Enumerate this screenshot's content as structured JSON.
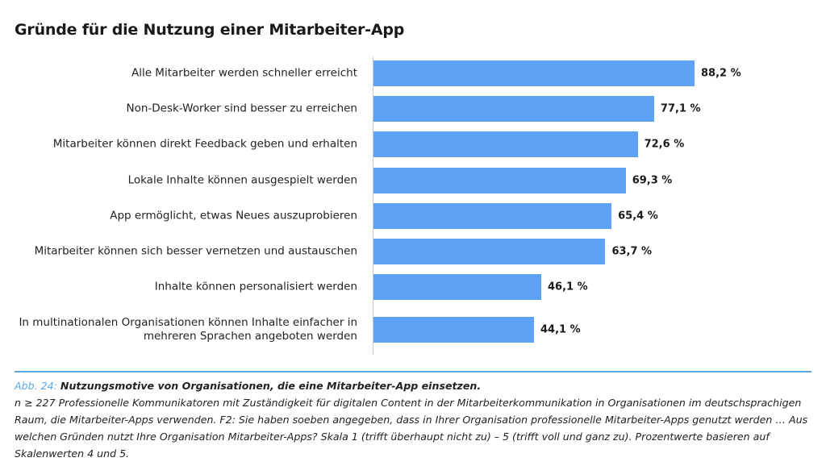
{
  "chart_data": {
    "type": "bar",
    "orientation": "horizontal",
    "title": "Gründe für die Nutzung einer Mitarbeiter-App",
    "categories": [
      "Alle Mitarbeiter werden schneller erreicht",
      "Non-Desk-Worker sind besser zu erreichen",
      "Mitarbeiter können direkt Feedback geben und erhalten",
      "Lokale Inhalte können ausgespielt werden",
      "App ermöglicht, etwas Neues auszuprobieren",
      "Mitarbeiter können sich besser vernetzen und austauschen",
      "Inhalte können personalisiert werden",
      "In multinationalen Organisationen können Inhalte einfacher in mehreren Sprachen angeboten werden"
    ],
    "values": [
      88.2,
      77.1,
      72.6,
      69.3,
      65.4,
      63.7,
      46.1,
      44.1
    ],
    "value_labels": [
      "88,2 %",
      "77,1 %",
      "72,6 %",
      "69,3 %",
      "65,4 %",
      "63,7 %",
      "46,1 %",
      "44,1 %"
    ],
    "color": "#5ea2f6"
  },
  "caption": {
    "label": "Abb. 24:",
    "title": "Nutzungsmotive von Organisationen, die eine Mitarbeiter-App einsetzen.",
    "note": "n ≥ 227 Professionelle Kommunikatoren mit Zuständigkeit für digitalen Content in der Mitarbeiterkommunikation in Organisationen im deutschsprachigen Raum, die Mitarbeiter-Apps verwenden. F2: Sie haben soeben angegeben, dass in Ihrer Organisation professionelle Mitarbeiter-Apps genutzt werden … Aus welchen Gründen nutzt Ihre Organisation Mitarbeiter-Apps? Skala 1 (trifft überhaupt nicht zu) – 5 (trifft voll und ganz zu). Prozentwerte basieren auf Skalenwerten 4 und 5."
  }
}
